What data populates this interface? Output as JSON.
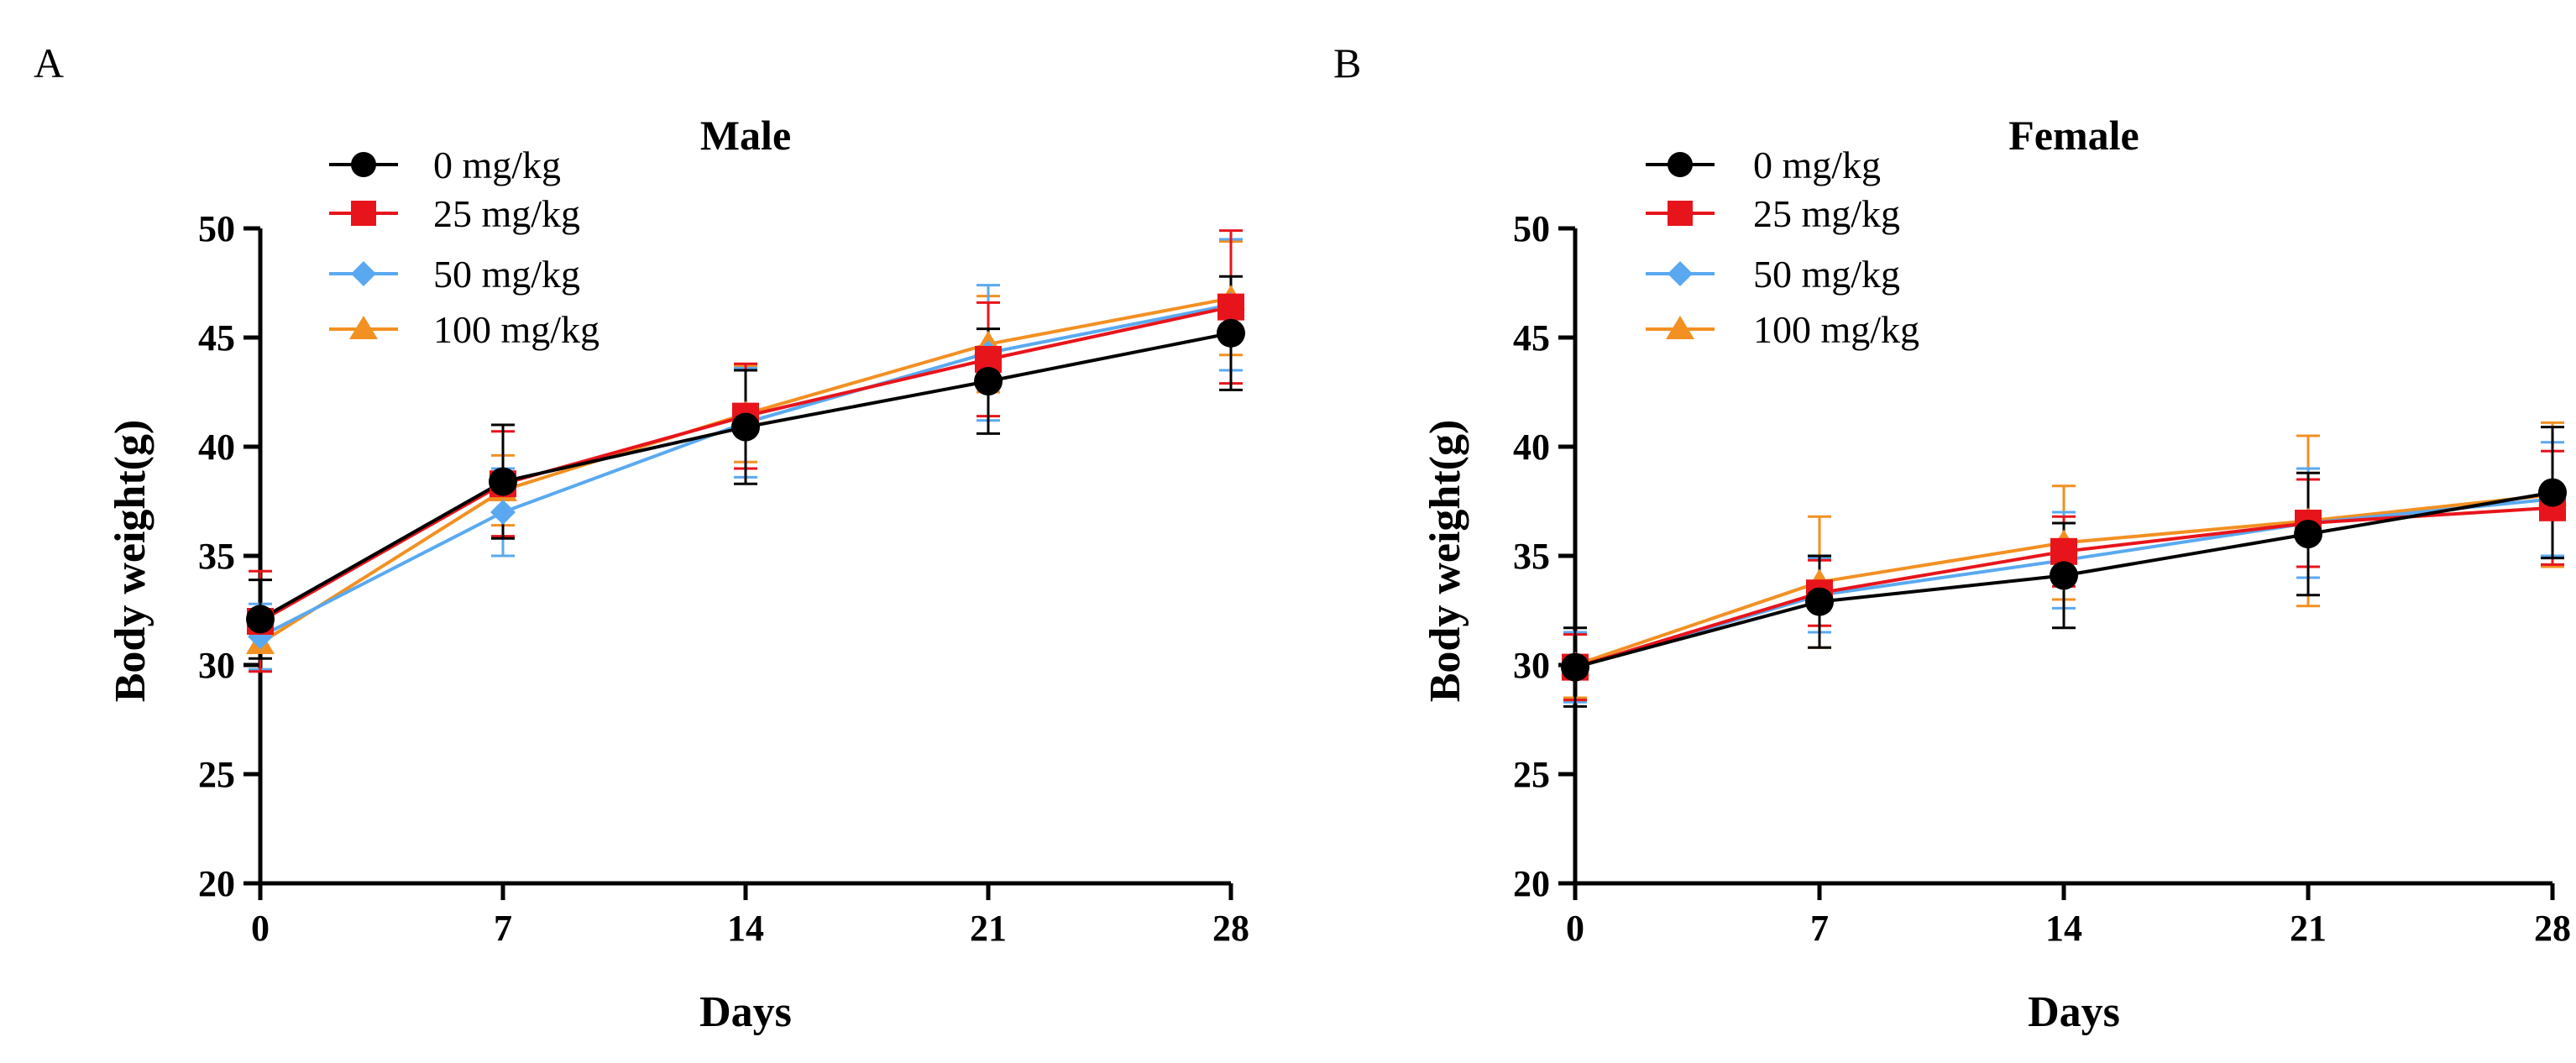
{
  "chart_data": [
    {
      "type": "line",
      "panel": "A",
      "title": "Male",
      "xlabel": "Days",
      "ylabel": "Body weight(g)",
      "x": [
        0,
        7,
        14,
        21,
        28
      ],
      "xticks": [
        "0",
        "7",
        "14",
        "21",
        "28"
      ],
      "yticks": [
        "20",
        "25",
        "30",
        "35",
        "40",
        "45",
        "50"
      ],
      "xlim": [
        0,
        28
      ],
      "ylim": [
        20,
        50
      ],
      "legend_position": "top-left",
      "series": [
        {
          "name": "0 mg/kg",
          "color": "#000000",
          "marker": "circle",
          "values": [
            32.1,
            38.4,
            40.9,
            43.0,
            45.2
          ],
          "errors": [
            1.8,
            2.6,
            2.6,
            2.4,
            2.6
          ]
        },
        {
          "name": "25 mg/kg",
          "color": "#e8141b",
          "marker": "square",
          "values": [
            32.0,
            38.3,
            41.4,
            44.0,
            46.4
          ],
          "errors": [
            2.3,
            2.4,
            2.4,
            2.6,
            3.5
          ]
        },
        {
          "name": "50 mg/kg",
          "color": "#5aa9f0",
          "marker": "diamond",
          "values": [
            31.3,
            37.0,
            41.1,
            44.3,
            46.5
          ],
          "errors": [
            1.5,
            2.0,
            2.5,
            3.1,
            3.0
          ]
        },
        {
          "name": "100 mg/kg",
          "color": "#f29022",
          "marker": "triangle",
          "values": [
            31.0,
            38.0,
            41.5,
            44.7,
            46.8
          ],
          "errors": [
            1.2,
            1.6,
            2.2,
            2.2,
            2.6
          ]
        }
      ]
    },
    {
      "type": "line",
      "panel": "B",
      "title": "Female",
      "xlabel": "Days",
      "ylabel": "Body weight(g)",
      "x": [
        0,
        7,
        14,
        21,
        28
      ],
      "xticks": [
        "0",
        "7",
        "14",
        "21",
        "28"
      ],
      "yticks": [
        "20",
        "25",
        "30",
        "35",
        "40",
        "45",
        "50"
      ],
      "xlim": [
        0,
        28
      ],
      "ylim": [
        20,
        50
      ],
      "legend_position": "top-left",
      "series": [
        {
          "name": "0 mg/kg",
          "color": "#000000",
          "marker": "circle",
          "values": [
            29.9,
            32.9,
            34.1,
            36.0,
            37.9
          ],
          "errors": [
            1.8,
            2.1,
            2.4,
            2.8,
            3.0
          ]
        },
        {
          "name": "25 mg/kg",
          "color": "#e8141b",
          "marker": "square",
          "values": [
            29.9,
            33.3,
            35.2,
            36.5,
            37.2
          ],
          "errors": [
            1.5,
            1.5,
            1.6,
            2.0,
            2.6
          ]
        },
        {
          "name": "50 mg/kg",
          "color": "#5aa9f0",
          "marker": "diamond",
          "values": [
            29.9,
            33.2,
            34.8,
            36.5,
            37.6
          ],
          "errors": [
            1.6,
            1.7,
            2.2,
            2.5,
            2.6
          ]
        },
        {
          "name": "100 mg/kg",
          "color": "#f29022",
          "marker": "triangle",
          "values": [
            30.0,
            33.8,
            35.6,
            36.6,
            37.8
          ],
          "errors": [
            1.5,
            3.0,
            2.6,
            3.9,
            3.3
          ]
        }
      ]
    }
  ]
}
